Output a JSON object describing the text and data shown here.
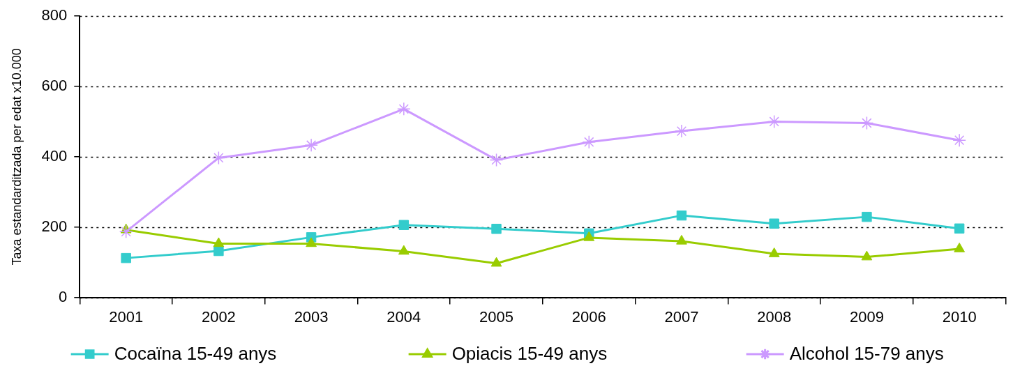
{
  "chart_data": {
    "type": "line",
    "ylabel": "Taxa estandarditzada per edat x10.000",
    "categories": [
      "2001",
      "2002",
      "2003",
      "2004",
      "2005",
      "2006",
      "2007",
      "2008",
      "2009",
      "2010"
    ],
    "series": [
      {
        "name": "Cocaïna 15-49 anys",
        "color": "#33cccc",
        "marker": "square",
        "values": [
          112,
          132,
          171,
          206,
          195,
          182,
          233,
          210,
          229,
          196
        ]
      },
      {
        "name": "Opiacis 15-49 anys",
        "color": "#99cc00",
        "marker": "triangle",
        "values": [
          192,
          153,
          153,
          131,
          97,
          170,
          160,
          124,
          115,
          138
        ]
      },
      {
        "name": "Alcohol 15-79 anys",
        "color": "#cc99ff",
        "marker": "cross",
        "values": [
          187,
          397,
          433,
          536,
          391,
          442,
          473,
          500,
          496,
          447
        ]
      }
    ],
    "ylim": [
      0,
      800
    ],
    "yticks": [
      0,
      200,
      400,
      600,
      800
    ],
    "grid": "y",
    "legend": "bottom",
    "line_style": "solid"
  }
}
